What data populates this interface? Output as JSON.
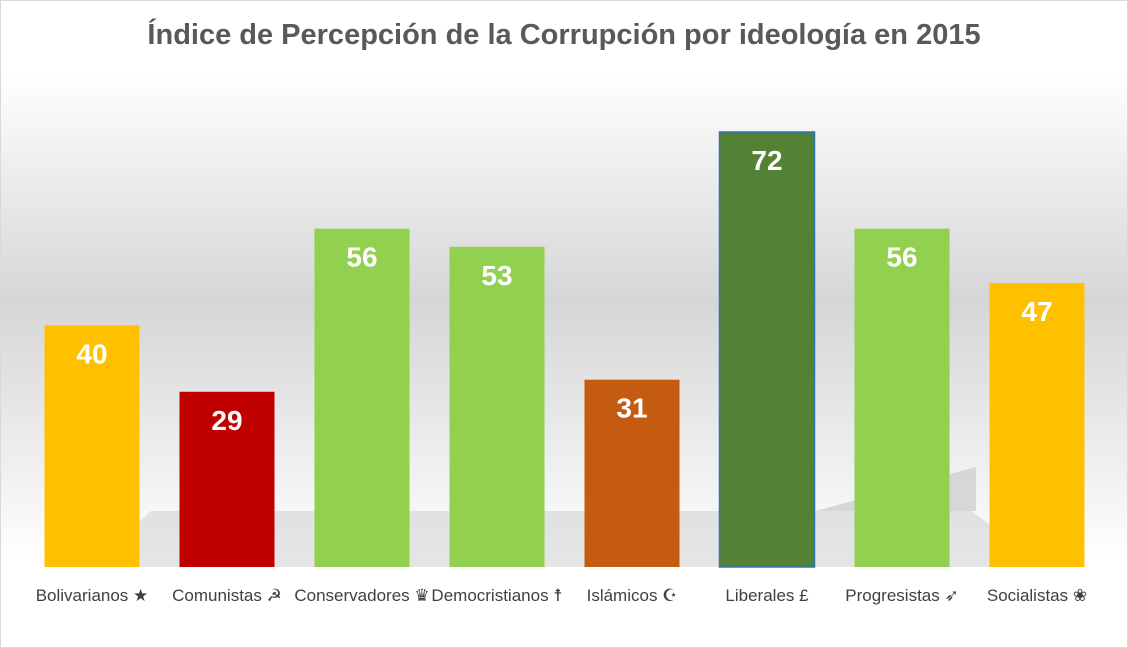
{
  "chart_data": {
    "type": "bar",
    "title": "Índice de Percepción de la Corrupción por ideología en 2015",
    "categories": [
      "Bolivarianos ★",
      "Comunistas ☭",
      "Conservadores ♛",
      "Democristianos ☨",
      "Islámicos ☪",
      "Liberales £",
      "Progresistas ➶",
      "Socialistas ❀"
    ],
    "values": [
      40,
      29,
      56,
      53,
      31,
      72,
      56,
      47
    ],
    "colors": [
      "#ffc000",
      "#c00000",
      "#92d050",
      "#92d050",
      "#c55a11",
      "#548235",
      "#92d050",
      "#ffc000"
    ],
    "ylim": [
      0,
      72
    ],
    "xlabel": "",
    "ylabel": "",
    "grid": false,
    "legend": "none"
  }
}
